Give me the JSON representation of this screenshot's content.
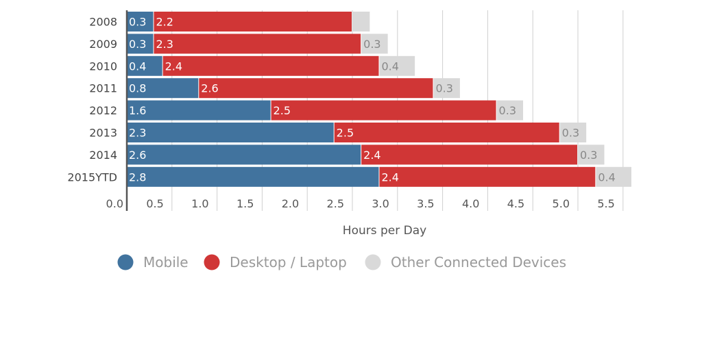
{
  "chart_data": {
    "type": "bar",
    "orientation": "horizontal",
    "stacked": true,
    "categories": [
      "2008",
      "2009",
      "2010",
      "2011",
      "2012",
      "2013",
      "2014",
      "2015YTD"
    ],
    "series": [
      {
        "name": "Mobile",
        "color": "#41739e",
        "values": [
          0.3,
          0.3,
          0.4,
          0.8,
          1.6,
          2.3,
          2.6,
          2.8
        ],
        "labels": [
          "0.3",
          "0.3",
          "0.4",
          "0.8",
          "1.6",
          "2.3",
          "2.6",
          "2.8"
        ]
      },
      {
        "name": "Desktop / Laptop",
        "color": "#d03636",
        "values": [
          2.2,
          2.3,
          2.4,
          2.6,
          2.5,
          2.5,
          2.4,
          2.4
        ],
        "labels": [
          "2.2",
          "2.3",
          "2.4",
          "2.6",
          "2.5",
          "2.5",
          "2.4",
          "2.4"
        ]
      },
      {
        "name": "Other Connected Devices",
        "color": "#d9d9d9",
        "values": [
          0.2,
          0.3,
          0.4,
          0.3,
          0.3,
          0.3,
          0.3,
          0.4
        ],
        "labels": [
          "",
          "0.3",
          "0.4",
          "0.3",
          "0.3",
          "0.3",
          "0.3",
          "0.4"
        ]
      }
    ],
    "xlabel": "Hours per Day",
    "xlim": [
      0,
      5.6
    ],
    "xticks": [
      0.0,
      0.5,
      1.0,
      1.5,
      2.0,
      2.5,
      3.0,
      3.5,
      4.0,
      4.5,
      5.0,
      5.5
    ],
    "xtick_labels": [
      "0.0",
      "0.5",
      "1.0",
      "1.5",
      "2.0",
      "2.5",
      "3.0",
      "3.5",
      "4.0",
      "4.5",
      "5.0",
      "5.5"
    ],
    "grid": true,
    "legend_position": "bottom"
  }
}
